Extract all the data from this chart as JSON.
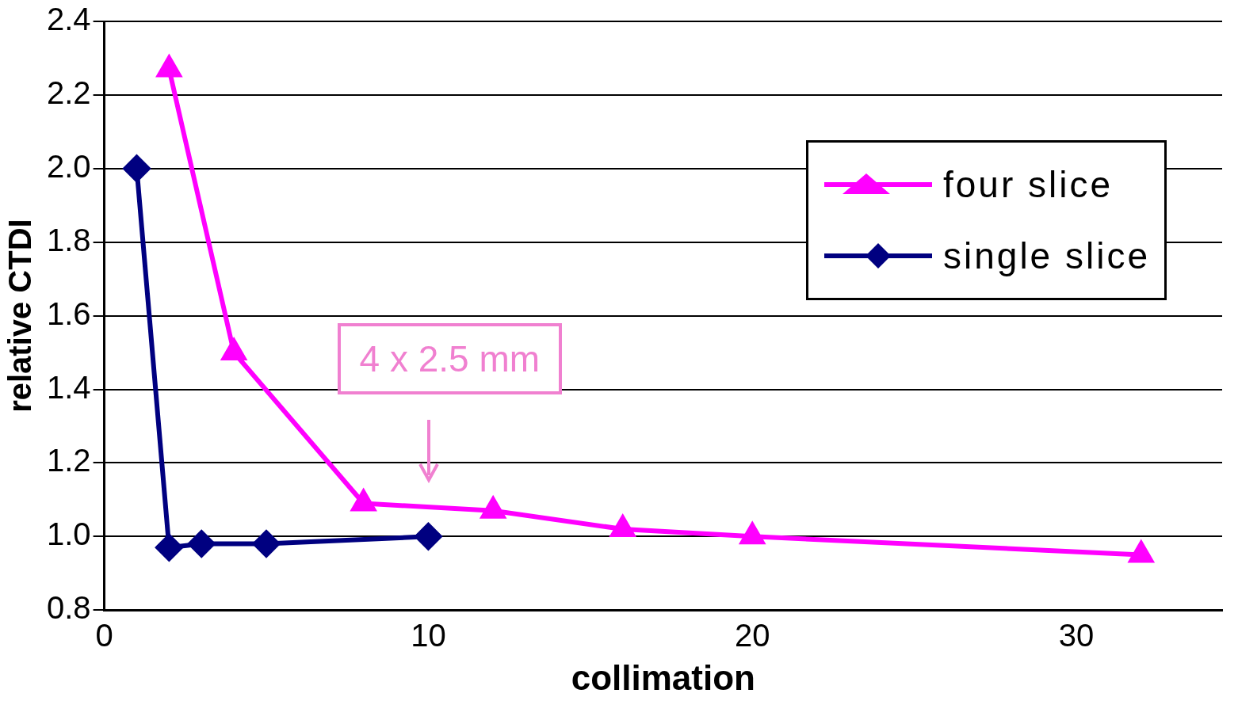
{
  "chart_data": {
    "type": "line",
    "xlabel": "collimation",
    "ylabel": "relative CTDI",
    "xlim": [
      0,
      34.5
    ],
    "xticks": [
      0,
      10,
      20,
      30
    ],
    "ylim": [
      0.8,
      2.4
    ],
    "yticks": [
      0.8,
      {
        "value": 1,
        "label": "1.0"
      },
      1.2,
      1.4,
      1.6,
      1.8,
      {
        "value": 2,
        "label": "2.0"
      },
      2.2,
      2.4
    ],
    "grid": "y",
    "legend": "top right",
    "line_style": "solid",
    "series": [
      {
        "name": "four slice",
        "color": "#ff00ff",
        "marker": "triangle",
        "x": [
          2,
          4,
          8,
          12,
          16,
          20,
          32
        ],
        "values": [
          2.27,
          1.5,
          1.09,
          1.07,
          1.02,
          1.0,
          0.95
        ]
      },
      {
        "name": "single slice",
        "color": "#000080",
        "marker": "diamond",
        "x": [
          1,
          2,
          3,
          5,
          10
        ],
        "values": [
          2.0,
          0.97,
          0.98,
          0.98,
          1.0
        ]
      }
    ],
    "annotations": [
      "4 x 2.5 mm"
    ]
  }
}
